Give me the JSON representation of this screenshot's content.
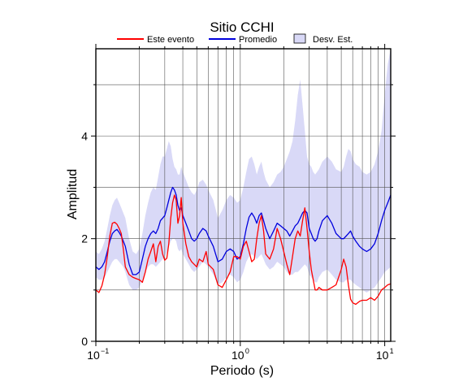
{
  "chart_data": {
    "type": "line",
    "title": "Sitio CCHI",
    "xlabel": "Periodo (s)",
    "ylabel": "Amplitud",
    "xscale": "log",
    "xlim": [
      0.1,
      11
    ],
    "ylim": [
      0,
      5.7
    ],
    "x_ticks": [
      {
        "base": "10",
        "exp": "−1",
        "value": 0.1
      },
      {
        "base": "10",
        "exp": "0",
        "value": 1
      },
      {
        "base": "10",
        "exp": "1",
        "value": 10
      }
    ],
    "y_ticks": [
      0,
      2,
      4
    ],
    "grid": true,
    "legend": {
      "placement": "top",
      "entries": [
        "Este evento",
        "Promedio",
        "Desv. Est."
      ]
    },
    "colors": {
      "evento": "#ff0000",
      "promedio": "#0000dd",
      "desv_fill": "#d9d9f7"
    },
    "series": [
      {
        "name": "Este evento",
        "x": [
          0.1,
          0.105,
          0.11,
          0.115,
          0.12,
          0.125,
          0.13,
          0.135,
          0.14,
          0.145,
          0.15,
          0.155,
          0.16,
          0.17,
          0.18,
          0.19,
          0.2,
          0.21,
          0.22,
          0.23,
          0.24,
          0.25,
          0.26,
          0.27,
          0.28,
          0.29,
          0.3,
          0.31,
          0.32,
          0.33,
          0.34,
          0.35,
          0.36,
          0.37,
          0.38,
          0.39,
          0.4,
          0.42,
          0.44,
          0.46,
          0.48,
          0.5,
          0.52,
          0.55,
          0.58,
          0.6,
          0.65,
          0.7,
          0.75,
          0.8,
          0.85,
          0.9,
          0.95,
          1.0,
          1.05,
          1.1,
          1.15,
          1.2,
          1.25,
          1.3,
          1.35,
          1.4,
          1.45,
          1.5,
          1.6,
          1.7,
          1.8,
          1.9,
          2.0,
          2.1,
          2.2,
          2.3,
          2.4,
          2.5,
          2.6,
          2.7,
          2.8,
          2.9,
          3.0,
          3.1,
          3.2,
          3.3,
          3.4,
          3.5,
          3.7,
          4.0,
          4.3,
          4.6,
          5.0,
          5.2,
          5.4,
          5.6,
          5.8,
          6.0,
          6.3,
          6.7,
          7.0,
          7.5,
          8.0,
          8.5,
          9.0,
          9.5,
          10.0,
          10.5,
          11.0
        ],
        "values": [
          1.0,
          0.95,
          1.08,
          1.3,
          1.65,
          2.05,
          2.3,
          2.32,
          2.28,
          2.2,
          2.1,
          1.8,
          1.45,
          1.3,
          1.25,
          1.22,
          1.2,
          1.15,
          1.35,
          1.6,
          1.75,
          1.9,
          1.55,
          1.85,
          1.95,
          1.7,
          1.58,
          1.62,
          1.9,
          2.4,
          2.7,
          2.85,
          2.75,
          2.3,
          2.45,
          2.8,
          2.3,
          1.9,
          1.65,
          1.55,
          1.5,
          1.45,
          1.6,
          1.55,
          1.75,
          1.5,
          1.4,
          1.1,
          1.05,
          1.2,
          1.35,
          1.65,
          1.65,
          1.6,
          1.85,
          1.95,
          1.75,
          1.55,
          1.6,
          2.0,
          2.3,
          2.45,
          2.15,
          1.7,
          1.6,
          1.8,
          2.2,
          2.0,
          1.75,
          1.5,
          1.3,
          1.65,
          2.0,
          2.15,
          2.05,
          2.35,
          2.6,
          2.2,
          1.75,
          1.4,
          1.2,
          1.0,
          1.0,
          1.05,
          1.0,
          1.0,
          1.05,
          1.1,
          1.4,
          1.6,
          1.45,
          1.1,
          0.82,
          0.75,
          0.72,
          0.78,
          0.8,
          0.8,
          0.85,
          0.8,
          0.88,
          1.0,
          1.05,
          1.1,
          1.12
        ]
      },
      {
        "name": "Promedio",
        "x": [
          0.1,
          0.105,
          0.11,
          0.115,
          0.12,
          0.125,
          0.13,
          0.135,
          0.14,
          0.145,
          0.15,
          0.155,
          0.16,
          0.17,
          0.18,
          0.19,
          0.2,
          0.21,
          0.22,
          0.23,
          0.24,
          0.25,
          0.26,
          0.27,
          0.28,
          0.29,
          0.3,
          0.31,
          0.32,
          0.33,
          0.34,
          0.35,
          0.36,
          0.37,
          0.38,
          0.39,
          0.4,
          0.42,
          0.44,
          0.46,
          0.48,
          0.5,
          0.52,
          0.55,
          0.58,
          0.6,
          0.65,
          0.7,
          0.75,
          0.8,
          0.85,
          0.9,
          0.95,
          1.0,
          1.05,
          1.1,
          1.15,
          1.2,
          1.25,
          1.3,
          1.35,
          1.4,
          1.45,
          1.5,
          1.6,
          1.7,
          1.8,
          1.9,
          2.0,
          2.1,
          2.2,
          2.3,
          2.4,
          2.5,
          2.6,
          2.7,
          2.8,
          2.9,
          3.0,
          3.1,
          3.2,
          3.3,
          3.4,
          3.5,
          3.7,
          4.0,
          4.3,
          4.6,
          5.0,
          5.2,
          5.4,
          5.6,
          5.8,
          6.0,
          6.3,
          6.7,
          7.0,
          7.5,
          8.0,
          8.5,
          9.0,
          9.5,
          10.0,
          10.5,
          11.0
        ],
        "values": [
          1.45,
          1.4,
          1.45,
          1.55,
          1.75,
          1.95,
          2.1,
          2.15,
          2.18,
          2.12,
          2.05,
          1.95,
          1.85,
          1.5,
          1.3,
          1.3,
          1.35,
          1.6,
          1.85,
          2.0,
          2.1,
          2.15,
          2.1,
          2.2,
          2.35,
          2.4,
          2.45,
          2.6,
          2.75,
          2.9,
          3.0,
          2.95,
          2.85,
          2.65,
          2.55,
          2.6,
          2.45,
          2.3,
          2.15,
          2.0,
          1.95,
          2.0,
          2.1,
          2.2,
          2.15,
          2.05,
          1.85,
          1.55,
          1.6,
          1.75,
          1.8,
          1.75,
          1.6,
          1.65,
          1.9,
          2.2,
          2.42,
          2.5,
          2.42,
          2.3,
          2.45,
          2.5,
          2.35,
          2.2,
          2.0,
          2.15,
          2.3,
          2.25,
          2.2,
          2.15,
          2.05,
          2.15,
          2.25,
          2.3,
          2.4,
          2.5,
          2.55,
          2.5,
          2.2,
          2.1,
          2.0,
          1.95,
          2.0,
          2.15,
          2.35,
          2.45,
          2.3,
          2.1,
          2.0,
          2.0,
          2.05,
          2.1,
          2.15,
          2.05,
          1.95,
          1.85,
          1.8,
          1.75,
          1.8,
          1.9,
          2.1,
          2.35,
          2.55,
          2.7,
          2.85
        ]
      },
      {
        "name": "Desv. Est.",
        "x": [
          0.1,
          0.105,
          0.11,
          0.115,
          0.12,
          0.125,
          0.13,
          0.135,
          0.14,
          0.145,
          0.15,
          0.155,
          0.16,
          0.17,
          0.18,
          0.19,
          0.2,
          0.21,
          0.22,
          0.23,
          0.24,
          0.25,
          0.26,
          0.27,
          0.28,
          0.29,
          0.3,
          0.31,
          0.32,
          0.33,
          0.34,
          0.35,
          0.36,
          0.37,
          0.38,
          0.39,
          0.4,
          0.42,
          0.44,
          0.46,
          0.48,
          0.5,
          0.52,
          0.55,
          0.58,
          0.6,
          0.65,
          0.7,
          0.75,
          0.8,
          0.85,
          0.9,
          0.95,
          1.0,
          1.05,
          1.1,
          1.15,
          1.2,
          1.25,
          1.3,
          1.35,
          1.4,
          1.45,
          1.5,
          1.6,
          1.7,
          1.8,
          1.9,
          2.0,
          2.1,
          2.2,
          2.3,
          2.4,
          2.5,
          2.6,
          2.7,
          2.8,
          2.9,
          3.0,
          3.1,
          3.2,
          3.3,
          3.4,
          3.5,
          3.7,
          4.0,
          4.3,
          4.6,
          5.0,
          5.2,
          5.4,
          5.6,
          5.8,
          6.0,
          6.3,
          6.7,
          7.0,
          7.5,
          8.0,
          8.5,
          9.0,
          9.5,
          10.0,
          10.5,
          11.0
        ],
        "upper": [
          1.75,
          1.7,
          1.8,
          1.95,
          2.2,
          2.45,
          2.65,
          2.75,
          2.8,
          2.7,
          2.6,
          2.5,
          2.4,
          2.0,
          1.75,
          1.7,
          1.8,
          2.1,
          2.45,
          2.7,
          2.9,
          3.0,
          2.95,
          3.2,
          3.45,
          3.6,
          3.6,
          3.75,
          3.9,
          3.8,
          3.55,
          3.4,
          3.35,
          3.25,
          3.25,
          3.4,
          3.3,
          3.15,
          3.0,
          2.9,
          2.85,
          2.95,
          3.1,
          3.15,
          3.05,
          2.95,
          2.75,
          2.4,
          2.55,
          2.75,
          2.85,
          2.8,
          2.7,
          2.75,
          3.0,
          3.3,
          3.55,
          3.6,
          3.45,
          3.25,
          3.4,
          3.5,
          3.3,
          3.15,
          3.0,
          3.1,
          3.25,
          3.3,
          3.4,
          3.55,
          3.7,
          3.9,
          4.3,
          4.8,
          5.1,
          4.6,
          4.1,
          3.6,
          3.45,
          3.4,
          3.3,
          3.25,
          3.3,
          3.35,
          3.5,
          3.6,
          3.5,
          3.35,
          3.3,
          3.4,
          3.6,
          3.75,
          3.7,
          3.55,
          3.45,
          3.4,
          3.3,
          3.25,
          3.3,
          3.45,
          3.7,
          4.1,
          4.8,
          5.4,
          5.7
        ],
        "lower": [
          1.25,
          1.2,
          1.2,
          1.25,
          1.35,
          1.45,
          1.55,
          1.6,
          1.6,
          1.55,
          1.5,
          1.45,
          1.35,
          1.1,
          1.0,
          1.0,
          1.05,
          1.2,
          1.35,
          1.45,
          1.5,
          1.5,
          1.45,
          1.5,
          1.55,
          1.6,
          1.65,
          1.75,
          1.85,
          1.95,
          2.0,
          2.0,
          1.95,
          1.8,
          1.75,
          1.8,
          1.7,
          1.6,
          1.5,
          1.4,
          1.35,
          1.4,
          1.45,
          1.55,
          1.5,
          1.45,
          1.3,
          1.1,
          1.15,
          1.25,
          1.3,
          1.25,
          1.15,
          1.2,
          1.35,
          1.55,
          1.65,
          1.7,
          1.65,
          1.6,
          1.65,
          1.7,
          1.6,
          1.5,
          1.4,
          1.45,
          1.55,
          1.5,
          1.45,
          1.35,
          1.3,
          1.3,
          1.35,
          1.35,
          1.4,
          1.45,
          1.5,
          1.45,
          1.3,
          1.25,
          1.2,
          1.15,
          1.15,
          1.25,
          1.35,
          1.4,
          1.3,
          1.2,
          1.15,
          1.15,
          1.2,
          1.2,
          1.2,
          1.15,
          1.1,
          1.05,
          1.0,
          0.95,
          1.0,
          1.05,
          1.15,
          1.25,
          1.35,
          1.4,
          1.45
        ]
      }
    ]
  }
}
